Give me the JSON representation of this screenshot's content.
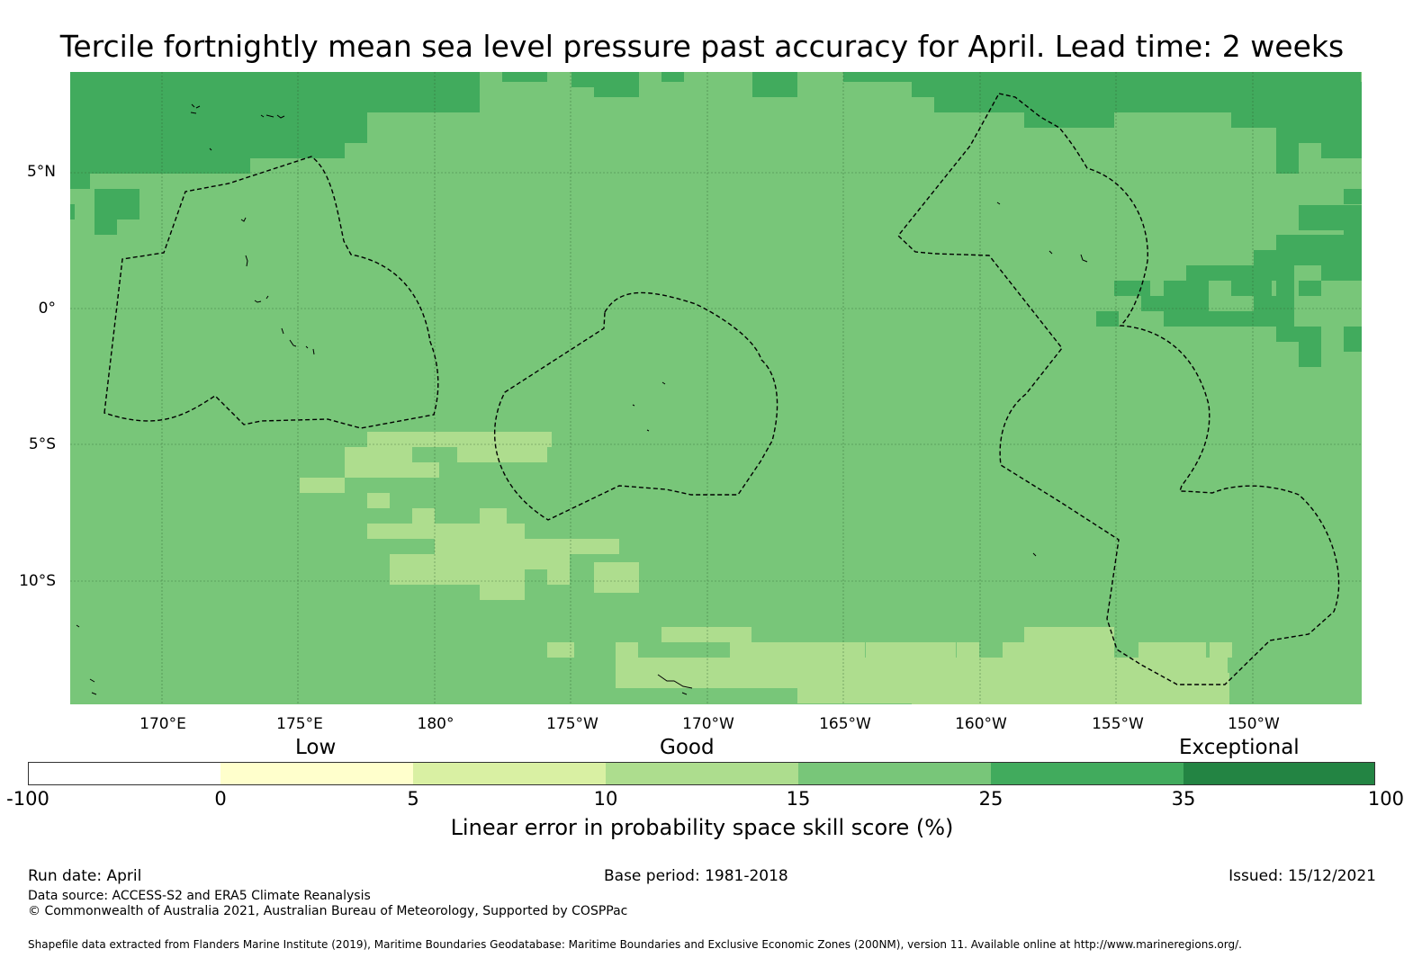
{
  "title": "Tercile fortnightly mean sea level pressure past accuracy for April. Lead time: 2 weeks",
  "map": {
    "lon_labels": [
      "170°E",
      "175°E",
      "180°",
      "175°W",
      "170°W",
      "165°W",
      "160°W",
      "155°W",
      "150°W"
    ],
    "lat_labels": [
      "5°N",
      "0°",
      "5°S",
      "10°S"
    ],
    "colors": {
      "low": "#aedd8e",
      "good": "#78c679",
      "high": "#41ab5d"
    }
  },
  "colorbar": {
    "categories": [
      "Low",
      "Good",
      "Exceptional"
    ],
    "ticks": [
      "-100",
      "0",
      "5",
      "10",
      "15",
      "25",
      "35",
      "100"
    ],
    "colors": [
      "#ffffff",
      "#ffffcc",
      "#d9f0a3",
      "#addd8e",
      "#78c679",
      "#41ab5d",
      "#238443"
    ],
    "label": "Linear error in probability space skill score (%)"
  },
  "footer": {
    "run_date": "Run date: April",
    "base_period": "Base period: 1981-2018",
    "issued": "Issued: 15/12/2021",
    "data_source": "Data source: ACCESS-S2 and ERA5 Climate Reanalysis",
    "copyright": "© Commonwealth of Australia 2021, Australian Bureau of Meteorology, Supported by COSPPac",
    "shapefile": "Shapefile data extracted from Flanders Marine Institute (2019), Maritime Boundaries Geodatabase: Maritime Boundaries and Exclusive Economic Zones (200NM), version 11. Available online at http://www.marineregions.org/."
  }
}
